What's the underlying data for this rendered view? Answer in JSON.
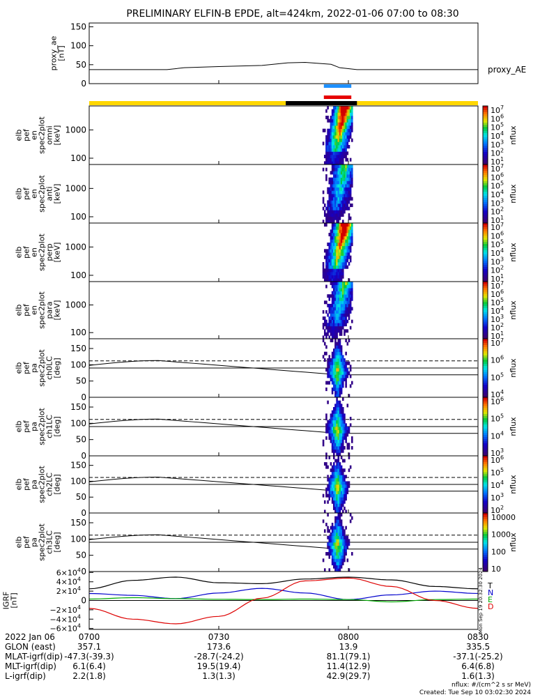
{
  "title": "PRELIMINARY ELFIN-B EPDE, alt=424km, 2022-01-06 07:00 to 08:30",
  "time_axis": {
    "date_label": "2022 Jan 06",
    "ticks": [
      "0700",
      "0730",
      "0800",
      "0830"
    ],
    "tick_minutes": [
      0,
      30,
      60,
      90
    ]
  },
  "orbit_table": [
    {
      "label": "GLON (east)",
      "values": [
        "357.1",
        "173.6",
        "13.9",
        "335.5"
      ]
    },
    {
      "label": "MLAT-igrf(dip)",
      "values": [
        "-47.3(-39.3)",
        "-28.7(-24.2)",
        "81.1(79.1)",
        "-37.1(-25.2)"
      ]
    },
    {
      "label": "MLT-igrf(dip)",
      "values": [
        "6.1(6.4)",
        "19.5(19.4)",
        "11.4(12.9)",
        "6.4(6.8)"
      ]
    },
    {
      "label": "L-igrf(dip)",
      "values": [
        "2.2(1.8)",
        "1.3(1.3)",
        "42.9(29.7)",
        "1.6(1.3)"
      ]
    }
  ],
  "footer": {
    "units": "nflux: #/(cm^2 s sr MeV)",
    "created": "Created: Tue Sep 10 03:02:30 2024"
  },
  "colors": {
    "sunlit_bar": "#ffd700",
    "shadow_bar": "#000000",
    "science_blue": "#1e90ff",
    "science_red": "#e60000",
    "T": "#000000",
    "N": "#0000cc",
    "E": "#00aa00",
    "D": "#dd0000"
  },
  "chart_data": [
    {
      "type": "line",
      "panel": "proxy_ae",
      "ylabel": [
        "proxy_ae",
        "[nT]"
      ],
      "legend": "proxy_AE",
      "ylim": [
        0,
        160
      ],
      "yticks": [
        "150",
        "100",
        "50",
        "0"
      ],
      "ytick_values": [
        150,
        100,
        50,
        0
      ],
      "x_minutes": [
        0,
        10,
        18,
        22,
        30,
        40,
        46,
        50,
        56,
        58,
        62,
        70,
        90
      ],
      "values": [
        37,
        37,
        37,
        42,
        45,
        48,
        55,
        56,
        51,
        42,
        37,
        37,
        37
      ]
    },
    {
      "type": "bar",
      "panel": "orbit_indicators",
      "segments": [
        {
          "name": "sunlit",
          "start_min": 0,
          "end_min": 45.5
        },
        {
          "name": "shadow",
          "start_min": 45.5,
          "end_min": 62
        },
        {
          "name": "sunlit",
          "start_min": 62,
          "end_min": 90
        }
      ],
      "science_zones": [
        {
          "name": "blue",
          "start_min": 54,
          "end_min": 61
        },
        {
          "name": "red",
          "start_min": 54,
          "end_min": 61
        }
      ]
    },
    {
      "type": "heatmap",
      "panel": "omni",
      "ylabel": [
        "elb",
        "pef",
        "en",
        "spec2plot",
        "omni",
        "[keV]"
      ],
      "yscale": "log",
      "ylim": [
        60,
        7000
      ],
      "yticks": [
        "1000",
        "100"
      ],
      "ytick_values": [
        1000,
        100
      ],
      "active_min": [
        54,
        61
      ],
      "colorbar": {
        "label": "nflux",
        "ticks": [
          "10^7",
          "10^6",
          "10^5",
          "10^4",
          "10^3",
          "10^2",
          "10^1"
        ],
        "exps": [
          7,
          6,
          5,
          4,
          3,
          2,
          1
        ]
      }
    },
    {
      "type": "heatmap",
      "panel": "anti",
      "ylabel": [
        "elb",
        "pef",
        "en",
        "spec2plot",
        "anti",
        "[keV]"
      ],
      "yscale": "log",
      "ylim": [
        60,
        7000
      ],
      "yticks": [
        "1000",
        "100"
      ],
      "ytick_values": [
        1000,
        100
      ],
      "active_min": [
        54,
        61
      ],
      "colorbar": {
        "label": "nflux",
        "ticks": [
          "10^7",
          "10^6",
          "10^5",
          "10^4",
          "10^3",
          "10^2",
          "10^1"
        ],
        "exps": [
          7,
          6,
          5,
          4,
          3,
          2,
          1
        ]
      }
    },
    {
      "type": "heatmap",
      "panel": "perp",
      "ylabel": [
        "elb",
        "pef",
        "en",
        "spec2plot",
        "perp",
        "[keV]"
      ],
      "yscale": "log",
      "ylim": [
        60,
        7000
      ],
      "yticks": [
        "1000",
        "100"
      ],
      "ytick_values": [
        1000,
        100
      ],
      "active_min": [
        54,
        61
      ],
      "colorbar": {
        "label": "nflux",
        "ticks": [
          "10^7",
          "10^6",
          "10^5",
          "10^4",
          "10^3",
          "10^2",
          "10^1"
        ],
        "exps": [
          7,
          6,
          5,
          4,
          3,
          2,
          1
        ]
      }
    },
    {
      "type": "heatmap",
      "panel": "para",
      "ylabel": [
        "elb",
        "pef",
        "en",
        "spec2plot",
        "para",
        "[keV]"
      ],
      "yscale": "log",
      "ylim": [
        60,
        7000
      ],
      "yticks": [
        "1000",
        "100"
      ],
      "ytick_values": [
        1000,
        100
      ],
      "active_min": [
        54,
        61
      ],
      "colorbar": {
        "label": "nflux",
        "ticks": [
          "10^7",
          "10^6",
          "10^5",
          "10^4",
          "10^3",
          "10^2",
          "10^1"
        ],
        "exps": [
          7,
          6,
          5,
          4,
          3,
          2,
          1
        ]
      }
    },
    {
      "type": "heatmap",
      "panel": "ch0LC",
      "ylabel": [
        "elb",
        "pef",
        "pa",
        "spec2plot",
        "ch0LC",
        "[deg]"
      ],
      "ylim": [
        0,
        180
      ],
      "yticks": [
        "150",
        "100",
        "50",
        "0"
      ],
      "ytick_values": [
        150,
        100,
        50,
        0
      ],
      "active_min": [
        54,
        61
      ],
      "colorbar": {
        "label": "nflux",
        "ticks": [
          "10^7",
          "10^6",
          "10^5",
          "10^4"
        ],
        "exps": [
          7,
          6,
          5,
          4
        ]
      }
    },
    {
      "type": "heatmap",
      "panel": "ch1LC",
      "ylabel": [
        "elb",
        "pef",
        "pa",
        "spec2plot",
        "ch1LC",
        "[deg]"
      ],
      "ylim": [
        0,
        180
      ],
      "yticks": [
        "150",
        "100",
        "50",
        "0"
      ],
      "ytick_values": [
        150,
        100,
        50,
        0
      ],
      "active_min": [
        54,
        61
      ],
      "colorbar": {
        "label": "nflux",
        "ticks": [
          "10^6",
          "10^5",
          "10^4",
          "10^3"
        ],
        "exps": [
          6,
          5,
          4,
          3
        ]
      }
    },
    {
      "type": "heatmap",
      "panel": "ch2LC",
      "ylabel": [
        "elb",
        "pef",
        "pa",
        "spec2plot",
        "ch2LC",
        "[deg]"
      ],
      "ylim": [
        0,
        180
      ],
      "yticks": [
        "150",
        "100",
        "50",
        "0"
      ],
      "ytick_values": [
        150,
        100,
        50,
        0
      ],
      "active_min": [
        54,
        61
      ],
      "colorbar": {
        "label": "nflux",
        "ticks": [
          "10^6",
          "10^5",
          "10^4",
          "10^3",
          "10^2"
        ],
        "exps": [
          6,
          5,
          4,
          3,
          2
        ]
      }
    },
    {
      "type": "heatmap",
      "panel": "ch3LC",
      "ylabel": [
        "elb",
        "pef",
        "pa",
        "spec2plot",
        "ch3LC",
        "[deg]"
      ],
      "ylim": [
        0,
        180
      ],
      "yticks": [
        "150",
        "100",
        "50",
        "0"
      ],
      "ytick_values": [
        150,
        100,
        50,
        0
      ],
      "active_min": [
        54,
        61
      ],
      "colorbar": {
        "label": "nflux",
        "ticks": [
          "10000",
          "1000",
          "100",
          "10"
        ],
        "exps": [
          4,
          3,
          2,
          1
        ]
      }
    },
    {
      "type": "line",
      "panel": "igrf",
      "ylabel": [
        "IGRF",
        "[nT]"
      ],
      "ylim": [
        -62000,
        62000
      ],
      "yticks": [
        "6×10^4",
        "4×10^4",
        "2×10^4",
        "0",
        "−2×10^4",
        "−4×10^4",
        "−6×10^4"
      ],
      "ytick_values": [
        60000,
        40000,
        20000,
        0,
        -20000,
        -40000,
        -60000
      ],
      "legend": [
        "T",
        "N",
        "E",
        "D"
      ],
      "side_label": "Mon Sep 19 20:32:30 2024",
      "series": [
        {
          "name": "T",
          "x_minutes": [
            0,
            10,
            20,
            30,
            40,
            50,
            60,
            70,
            80,
            90
          ],
          "values": [
            25000,
            43000,
            50000,
            38000,
            36000,
            46000,
            50000,
            44000,
            30000,
            25000
          ]
        },
        {
          "name": "N",
          "x_minutes": [
            0,
            10,
            20,
            30,
            40,
            50,
            60,
            70,
            80,
            90
          ],
          "values": [
            15000,
            11000,
            4000,
            16000,
            26000,
            16000,
            2000,
            12000,
            20000,
            15000
          ]
        },
        {
          "name": "E",
          "x_minutes": [
            0,
            10,
            20,
            30,
            40,
            50,
            60,
            70,
            80,
            90
          ],
          "values": [
            3000,
            6000,
            4000,
            2500,
            2000,
            3000,
            2000,
            -3000,
            2000,
            3000
          ]
        },
        {
          "name": "D",
          "x_minutes": [
            0,
            10,
            20,
            30,
            40,
            50,
            60,
            70,
            80,
            90
          ],
          "values": [
            -17000,
            -40000,
            -50000,
            -34000,
            5000,
            42000,
            48000,
            30000,
            0,
            -17000
          ]
        }
      ]
    }
  ]
}
